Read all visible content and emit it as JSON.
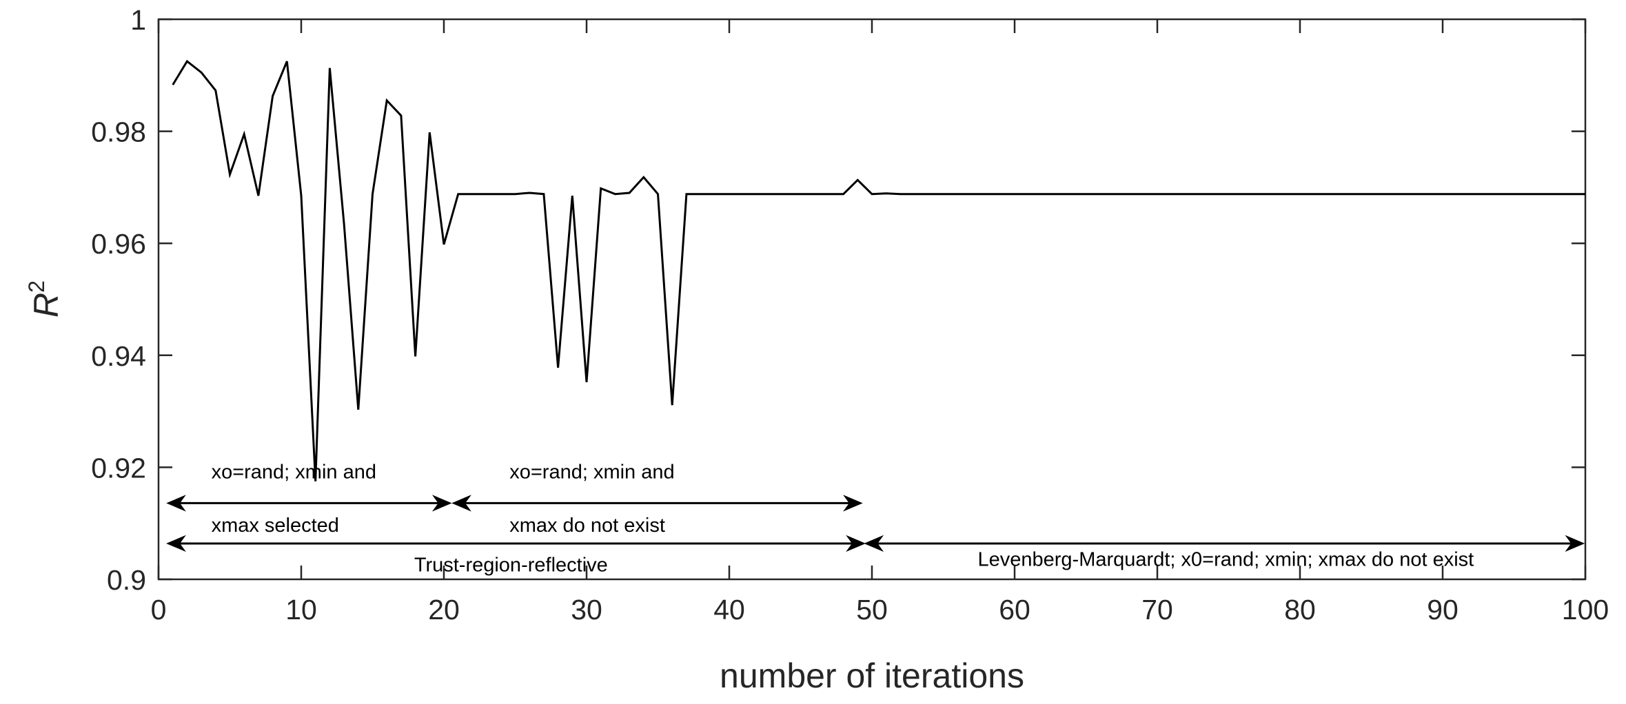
{
  "chart_data": {
    "type": "line",
    "xlabel": "number of iterations",
    "ylabel": "R",
    "ylabel_superscript": "2",
    "xlim": [
      0,
      100
    ],
    "ylim": [
      0.9,
      1.0
    ],
    "xticks": [
      0,
      10,
      20,
      30,
      40,
      50,
      60,
      70,
      80,
      90,
      100
    ],
    "yticks": [
      0.9,
      0.92,
      0.94,
      0.96,
      0.98,
      1.0
    ],
    "ytick_labels": [
      "0.9",
      "0.92",
      "0.94",
      "0.96",
      "0.98",
      "1"
    ],
    "grid": false,
    "series": [
      {
        "name": "R2",
        "color": "#000000",
        "x": [
          1,
          2,
          3,
          4,
          5,
          6,
          7,
          8,
          9,
          10,
          11,
          12,
          13,
          14,
          15,
          16,
          17,
          18,
          19,
          20,
          21,
          22,
          23,
          24,
          25,
          26,
          27,
          28,
          29,
          30,
          31,
          32,
          33,
          34,
          35,
          36,
          37,
          38,
          39,
          40,
          41,
          42,
          43,
          44,
          45,
          46,
          47,
          48,
          49,
          50,
          51,
          52,
          53,
          54,
          55,
          56,
          57,
          58,
          59,
          60,
          61,
          62,
          63,
          64,
          65,
          66,
          67,
          68,
          69,
          70,
          71,
          72,
          73,
          74,
          75,
          76,
          77,
          78,
          79,
          80,
          81,
          82,
          83,
          84,
          85,
          86,
          87,
          88,
          89,
          90,
          91,
          92,
          93,
          94,
          95,
          96,
          97,
          98,
          99,
          100
        ],
        "values": [
          0.9883,
          0.9925,
          0.9905,
          0.9873,
          0.9723,
          0.9795,
          0.9685,
          0.9863,
          0.9925,
          0.9685,
          0.9175,
          0.9913,
          0.9635,
          0.9303,
          0.9688,
          0.9855,
          0.9828,
          0.9398,
          0.9798,
          0.9598,
          0.9688,
          0.9688,
          0.9688,
          0.9688,
          0.9688,
          0.969,
          0.9688,
          0.9378,
          0.9685,
          0.9352,
          0.9698,
          0.9688,
          0.969,
          0.9718,
          0.9688,
          0.9311,
          0.9688,
          0.9688,
          0.9688,
          0.9688,
          0.9688,
          0.9688,
          0.9688,
          0.9688,
          0.9688,
          0.9688,
          0.9688,
          0.9688,
          0.9713,
          0.9688,
          0.9689,
          0.9688,
          0.9688,
          0.9688,
          0.9688,
          0.9688,
          0.9688,
          0.9688,
          0.9688,
          0.9688,
          0.9688,
          0.9688,
          0.9688,
          0.9688,
          0.9688,
          0.9688,
          0.9688,
          0.9688,
          0.9688,
          0.9688,
          0.9688,
          0.9688,
          0.9688,
          0.9688,
          0.9688,
          0.9688,
          0.9688,
          0.9688,
          0.9688,
          0.9688,
          0.9688,
          0.9688,
          0.9688,
          0.9688,
          0.9688,
          0.9688,
          0.9688,
          0.9688,
          0.9688,
          0.9688,
          0.9688,
          0.9688,
          0.9688,
          0.9688,
          0.9688,
          0.9688,
          0.9688,
          0.9688,
          0.9688,
          0.9688
        ]
      }
    ],
    "annotations": [
      {
        "name": "annot-xo-rand-selected",
        "x_start": 0.6,
        "x_end": 20.5,
        "y_arrow": 0.9136,
        "lines": [
          "xo=rand; xmin and",
          "xmax selected"
        ],
        "y_lines": [
          0.918,
          0.9085
        ],
        "x_text": 3.7,
        "align": "start",
        "arrow_left": true,
        "arrow_right": true
      },
      {
        "name": "annot-xo-rand-not-exist",
        "x_start": 20.6,
        "x_end": 49.3,
        "y_arrow": 0.9136,
        "lines": [
          "xo=rand; xmin and",
          "xmax do not exist"
        ],
        "y_lines": [
          0.918,
          0.9085
        ],
        "x_text": 24.6,
        "align": "start",
        "arrow_left": true,
        "arrow_right": true
      },
      {
        "name": "annot-trust-region",
        "x_start": 0.6,
        "x_end": 49.5,
        "y_arrow": 0.9064,
        "lines": [
          "Trust-region-reflective"
        ],
        "y_lines": [
          0.9014
        ],
        "x_text": 24.7,
        "align": "middle",
        "arrow_left": true,
        "arrow_right": true
      },
      {
        "name": "annot-levenberg",
        "x_start": 49.5,
        "x_end": 99.9,
        "y_arrow": 0.9064,
        "lines": [
          "Levenberg-Marquardt; x0=rand; xmin; xmax do not exist"
        ],
        "y_lines": [
          0.9024
        ],
        "x_text": 74.8,
        "align": "middle",
        "arrow_left": true,
        "arrow_right": true
      }
    ]
  }
}
